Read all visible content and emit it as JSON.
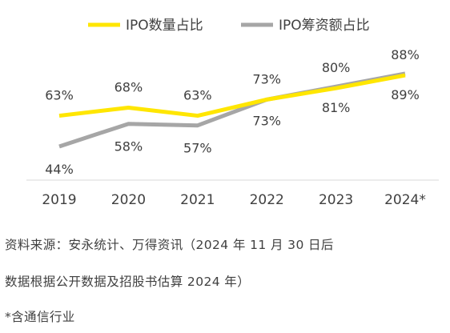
{
  "chart_data": {
    "type": "line",
    "x": [
      "2019",
      "2020",
      "2021",
      "2022",
      "2023",
      "2024*"
    ],
    "series": [
      {
        "name": "IPO数量占比",
        "values": [
          63,
          68,
          63,
          73,
          80,
          88
        ],
        "labels": [
          "63%",
          "68%",
          "63%",
          "73%",
          "80%",
          "88%"
        ],
        "color": "#ffe600"
      },
      {
        "name": "IPO筹资额占比",
        "values": [
          44,
          58,
          57,
          73,
          81,
          89
        ],
        "labels": [
          "44%",
          "58%",
          "57%",
          "73%",
          "81%",
          "89%"
        ],
        "color": "#a6a6a6"
      }
    ],
    "legend_position": "top",
    "grid": false
  },
  "source_line1": "资料来源：安永统计、万得资讯（2024 年 11 月 30 日后",
  "source_line2": "数据根据公开数据及招股书估算 2024 年）",
  "footnote": "*含通信行业"
}
